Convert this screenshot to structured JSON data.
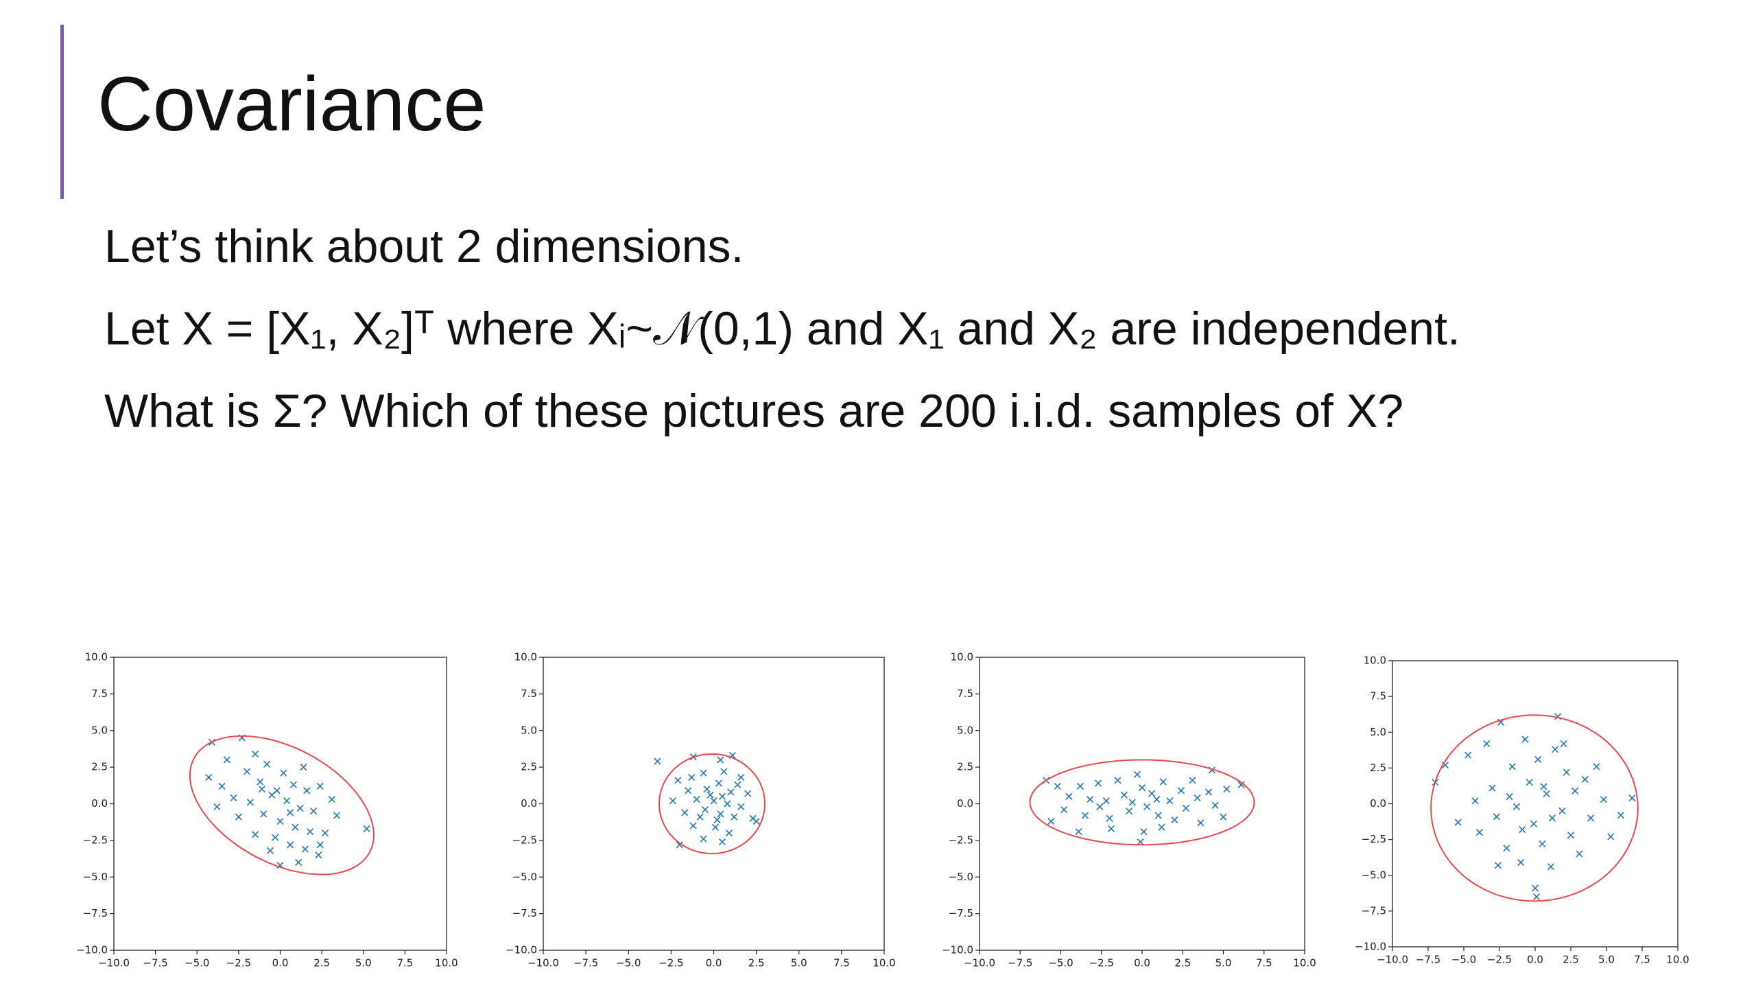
{
  "title": "Covariance",
  "body": [
    "Let’s think about 2 dimensions.",
    "Let X = [X₁, X₂]ᵀ where Xᵢ~𝒩(0,1) and X₁ and X₂ are independent.",
    "What is Σ? Which of these pictures are 200 i.i.d. samples of X?"
  ],
  "chart_data": [
    {
      "type": "scatter",
      "color": "#1f77b4",
      "marker": "x",
      "x": [
        -4.1,
        -2.3,
        -3.2,
        -1.5,
        -0.8,
        -2.0,
        -4.3,
        -3.5,
        -1.2,
        0.2,
        0.8,
        1.6,
        2.4,
        -2.8,
        -1.8,
        -0.5,
        0.4,
        1.2,
        2.0,
        3.1,
        3.4,
        -3.8,
        -2.5,
        -1.0,
        0.0,
        0.9,
        1.8,
        2.7,
        -1.5,
        -0.3,
        0.6,
        1.5,
        2.3,
        -0.6,
        0.0,
        1.1,
        2.4,
        5.2,
        -0.2,
        0.6,
        -1.1,
        1.4
      ],
      "y": [
        4.2,
        4.5,
        3.0,
        3.4,
        2.7,
        2.2,
        1.8,
        1.2,
        1.5,
        2.1,
        1.3,
        0.9,
        1.2,
        0.4,
        0.1,
        0.6,
        0.2,
        -0.3,
        -0.5,
        0.3,
        -0.8,
        -0.2,
        -0.9,
        -0.7,
        -1.2,
        -1.6,
        -1.9,
        -2.0,
        -2.1,
        -2.3,
        -2.8,
        -3.1,
        -3.5,
        -3.2,
        -4.2,
        -4.0,
        -2.8,
        -1.7,
        0.9,
        -0.6,
        1.0,
        2.5
      ],
      "ellipse": {
        "cx": 0.1,
        "cy": -0.1,
        "rx": 6.2,
        "ry": 3.8,
        "angle": -35,
        "color": "#e8494a"
      },
      "xlim": [
        -10,
        10
      ],
      "ylim": [
        -10,
        10
      ],
      "xticks": [
        {
          "value": -10,
          "label": "−10.0"
        },
        {
          "value": -7.5,
          "label": "−7.5"
        },
        {
          "value": -5,
          "label": "−5.0"
        },
        {
          "value": -2.5,
          "label": "−2.5"
        },
        {
          "value": 0,
          "label": "0.0"
        },
        2.5,
        {
          "value": 5,
          "label": "5.0"
        },
        7.5,
        {
          "value": 10,
          "label": "10.0"
        }
      ],
      "yticks": [
        {
          "value": -10,
          "label": "−10.0"
        },
        {
          "value": -7.5,
          "label": "−7.5"
        },
        {
          "value": -5,
          "label": "−5.0"
        },
        {
          "value": -2.5,
          "label": "−2.5"
        },
        {
          "value": 0,
          "label": "0.0"
        },
        2.5,
        {
          "value": 5,
          "label": "5.0"
        },
        7.5,
        {
          "value": 10,
          "label": "10.0"
        }
      ]
    },
    {
      "type": "scatter",
      "color": "#1f77b4",
      "marker": "x",
      "x": [
        -3.3,
        -1.2,
        0.4,
        1.1,
        -2.1,
        -0.6,
        0.6,
        1.6,
        -1.5,
        -0.4,
        0.3,
        1.0,
        2.0,
        -2.4,
        -1.0,
        0.0,
        0.8,
        1.6,
        -1.7,
        -0.5,
        0.4,
        1.2,
        2.3,
        -1.2,
        0.1,
        0.9,
        -0.6,
        -2.0,
        0.5,
        2.5,
        -0.2,
        0.5,
        -0.8,
        0.2,
        1.4,
        -1.3
      ],
      "y": [
        2.9,
        3.2,
        3.0,
        3.3,
        1.6,
        2.1,
        2.2,
        1.8,
        0.9,
        1.0,
        1.4,
        0.8,
        0.7,
        0.2,
        0.3,
        0.2,
        0.0,
        -0.2,
        -0.6,
        -0.4,
        -0.7,
        -0.9,
        -1.0,
        -1.5,
        -1.6,
        -2.0,
        -2.4,
        -2.8,
        -2.6,
        -1.2,
        0.6,
        0.5,
        -0.9,
        -1.1,
        1.3,
        1.8
      ],
      "ellipse": {
        "cx": -0.1,
        "cy": 0,
        "rx": 3.1,
        "ry": 3.4,
        "angle": 0,
        "color": "#e8494a"
      },
      "xlim": [
        -10,
        10
      ],
      "ylim": [
        -10,
        10
      ],
      "xticks": [
        {
          "value": -10,
          "label": "−10.0"
        },
        {
          "value": -7.5,
          "label": "−7.5"
        },
        {
          "value": -5,
          "label": "−5.0"
        },
        {
          "value": -2.5,
          "label": "−2.5"
        },
        {
          "value": 0,
          "label": "0.0"
        },
        2.5,
        {
          "value": 5,
          "label": "5.0"
        },
        7.5,
        {
          "value": 10,
          "label": "10.0"
        }
      ],
      "yticks": [
        {
          "value": -10,
          "label": "−10.0"
        },
        {
          "value": -7.5,
          "label": "−7.5"
        },
        {
          "value": -5,
          "label": "−5.0"
        },
        {
          "value": -2.5,
          "label": "−2.5"
        },
        {
          "value": 0,
          "label": "0.0"
        },
        2.5,
        {
          "value": 5,
          "label": "5.0"
        },
        7.5,
        {
          "value": 10,
          "label": "10.0"
        }
      ]
    },
    {
      "type": "scatter",
      "color": "#1f77b4",
      "marker": "x",
      "x": [
        -5.9,
        -5.2,
        -4.5,
        -4.8,
        -5.6,
        -3.8,
        -3.2,
        -3.5,
        -2.7,
        -2.2,
        -2.0,
        -1.5,
        -1.1,
        -0.8,
        -0.3,
        0.0,
        0.3,
        0.1,
        0.6,
        1.0,
        1.3,
        1.7,
        2.0,
        2.4,
        2.7,
        3.1,
        3.4,
        3.6,
        4.1,
        4.5,
        5.0,
        5.2,
        6.1,
        -3.9,
        -1.9,
        1.2,
        4.3,
        -0.6,
        0.9,
        -2.6,
        -0.1
      ],
      "y": [
        1.6,
        1.2,
        0.5,
        -0.4,
        -1.2,
        1.2,
        0.3,
        -0.8,
        1.4,
        0.2,
        -1.0,
        1.6,
        0.6,
        -0.5,
        2.0,
        1.1,
        -0.2,
        -1.9,
        0.7,
        -0.8,
        1.5,
        0.2,
        -1.1,
        0.9,
        -0.3,
        1.6,
        0.4,
        -1.3,
        0.8,
        -0.1,
        -0.9,
        1.0,
        1.3,
        -1.9,
        -1.7,
        -1.6,
        2.3,
        0.1,
        0.3,
        -0.2,
        -2.6
      ],
      "ellipse": {
        "cx": 0,
        "cy": 0.1,
        "rx": 6.9,
        "ry": 2.9,
        "angle": 0,
        "color": "#e8494a"
      },
      "xlim": [
        -10,
        10
      ],
      "ylim": [
        -10,
        10
      ],
      "xticks": [
        {
          "value": -10,
          "label": "−10.0"
        },
        {
          "value": -7.5,
          "label": "−7.5"
        },
        {
          "value": -5,
          "label": "−5.0"
        },
        {
          "value": -2.5,
          "label": "−2.5"
        },
        {
          "value": 0,
          "label": "0.0"
        },
        2.5,
        {
          "value": 5,
          "label": "5.0"
        },
        7.5,
        {
          "value": 10,
          "label": "10.0"
        }
      ],
      "yticks": [
        {
          "value": -10,
          "label": "−10.0"
        },
        {
          "value": -7.5,
          "label": "−7.5"
        },
        {
          "value": -5,
          "label": "−5.0"
        },
        {
          "value": -2.5,
          "label": "−2.5"
        },
        {
          "value": 0,
          "label": "0.0"
        },
        2.5,
        {
          "value": 5,
          "label": "5.0"
        },
        7.5,
        {
          "value": 10,
          "label": "10.0"
        }
      ]
    },
    {
      "type": "scatter",
      "color": "#1f77b4",
      "marker": "x",
      "x": [
        -7.0,
        -6.3,
        -5.4,
        -4.7,
        -4.2,
        -3.9,
        -3.4,
        -3.0,
        -2.7,
        -2.4,
        -2.0,
        -1.6,
        -1.3,
        -1.0,
        -0.7,
        -0.4,
        -0.1,
        0.2,
        0.5,
        0.8,
        1.1,
        1.4,
        1.6,
        1.9,
        2.2,
        2.5,
        2.8,
        3.1,
        3.5,
        3.9,
        4.3,
        4.8,
        5.3,
        6.0,
        6.8,
        0.0,
        0.1,
        -1.8,
        0.6,
        -0.9,
        1.2,
        -2.6,
        2.0
      ],
      "y": [
        1.5,
        2.7,
        -1.3,
        3.4,
        0.2,
        -2.0,
        4.2,
        1.1,
        -0.9,
        5.7,
        -3.1,
        2.6,
        -0.2,
        -4.1,
        4.5,
        1.5,
        -1.4,
        3.1,
        -2.8,
        0.7,
        -4.4,
        3.8,
        6.1,
        -0.5,
        2.2,
        -2.2,
        0.9,
        -3.5,
        1.7,
        -1.0,
        2.6,
        0.3,
        -2.3,
        -0.8,
        0.4,
        -5.9,
        -6.5,
        0.5,
        1.2,
        -1.8,
        -1.0,
        -4.3,
        4.2
      ],
      "ellipse": {
        "cx": -0.05,
        "cy": -0.3,
        "rx": 7.25,
        "ry": 6.5,
        "angle": 0,
        "color": "#e8494a"
      },
      "xlim": [
        -10,
        10
      ],
      "ylim": [
        -10,
        10
      ],
      "xticks": [
        {
          "value": -10,
          "label": "−10.0"
        },
        {
          "value": -7.5,
          "label": "−7.5"
        },
        {
          "value": -5,
          "label": "−5.0"
        },
        {
          "value": -2.5,
          "label": "−2.5"
        },
        {
          "value": 0,
          "label": "0.0"
        },
        2.5,
        {
          "value": 5,
          "label": "5.0"
        },
        7.5,
        {
          "value": 10,
          "label": "10.0"
        }
      ],
      "yticks": [
        {
          "value": -10,
          "label": "−10.0"
        },
        {
          "value": -7.5,
          "label": "−7.5"
        },
        {
          "value": -5,
          "label": "−5.0"
        },
        {
          "value": -2.5,
          "label": "−2.5"
        },
        {
          "value": 0,
          "label": "0.0"
        },
        2.5,
        {
          "value": 5,
          "label": "5.0"
        },
        7.5,
        {
          "value": 10,
          "label": "10.0"
        }
      ]
    }
  ]
}
